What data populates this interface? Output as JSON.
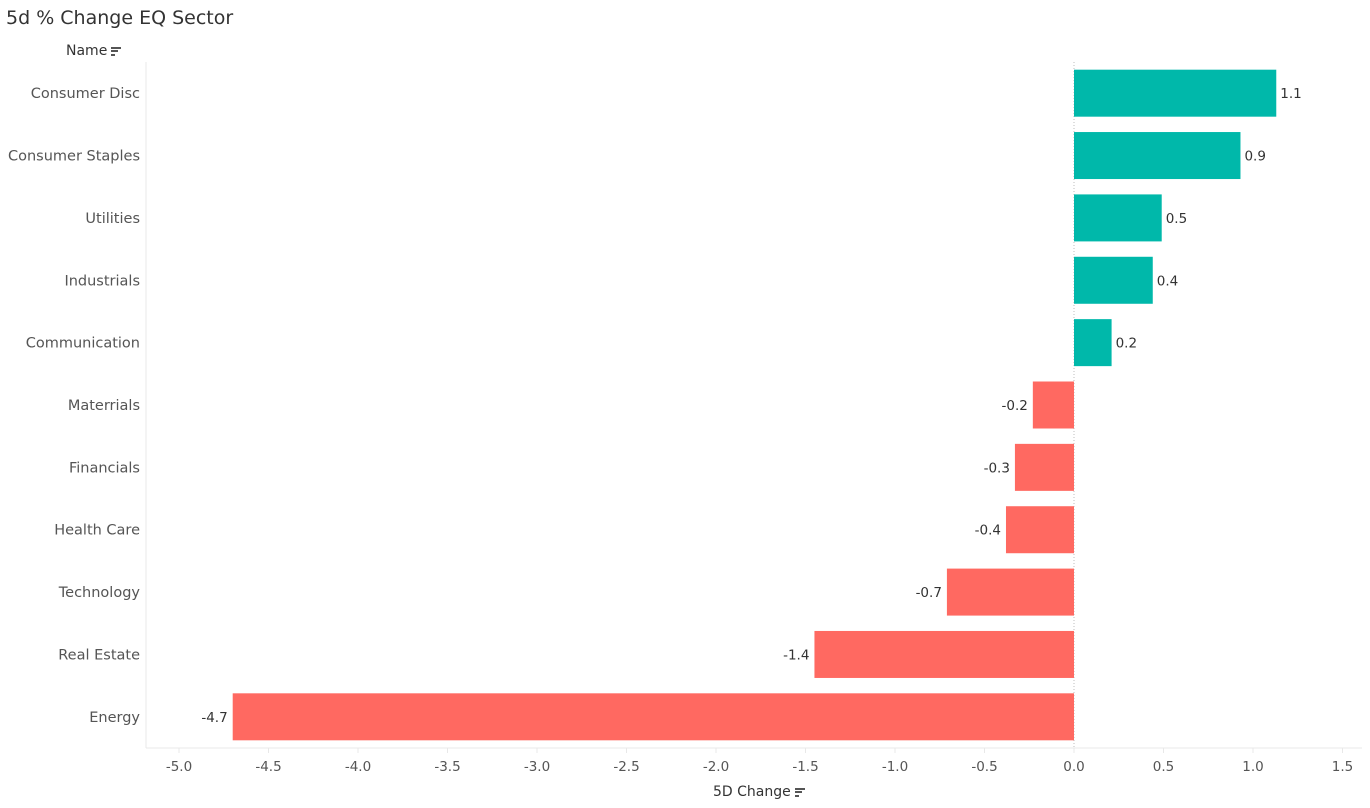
{
  "title": "5d % Change EQ Sector",
  "y_header": "Name",
  "x_header": "5D Change",
  "icons": {
    "sort": "sort-descending-icon"
  },
  "colors": {
    "positive": "#00B8AA",
    "negative": "#FF6961",
    "grid": "#e8e8e8",
    "zero_line": "#bdbdbd"
  },
  "chart_data": {
    "type": "bar",
    "orientation": "horizontal",
    "categories": [
      "Consumer Disc",
      "Consumer Staples",
      "Utilities",
      "Industrials",
      "Communication",
      "Materrials",
      "Financials",
      "Health Care",
      "Technology",
      "Real Estate",
      "Energy"
    ],
    "values": [
      1.13,
      0.93,
      0.49,
      0.44,
      0.21,
      -0.23,
      -0.33,
      -0.38,
      -0.71,
      -1.45,
      -4.7
    ],
    "data_labels": [
      "1.1",
      "0.9",
      "0.5",
      "0.4",
      "0.2",
      "-0.2",
      "-0.3",
      "-0.4",
      "-0.7",
      "-1.4",
      "-4.7"
    ],
    "xlim": [
      -5.15,
      1.6
    ],
    "xticks": [
      -5.0,
      -4.5,
      -4.0,
      -3.5,
      -3.0,
      -2.5,
      -2.0,
      -1.5,
      -1.0,
      -0.5,
      0.0,
      0.5,
      1.0,
      1.5
    ],
    "xtick_labels": [
      "-5.0",
      "-4.5",
      "-4.0",
      "-3.5",
      "-3.0",
      "-2.5",
      "-2.0",
      "-1.5",
      "-1.0",
      "-0.5",
      "0.0",
      "0.5",
      "1.0",
      "1.5"
    ],
    "xlabel": "5D Change",
    "ylabel": "Name",
    "grid": false,
    "legend": "none"
  }
}
